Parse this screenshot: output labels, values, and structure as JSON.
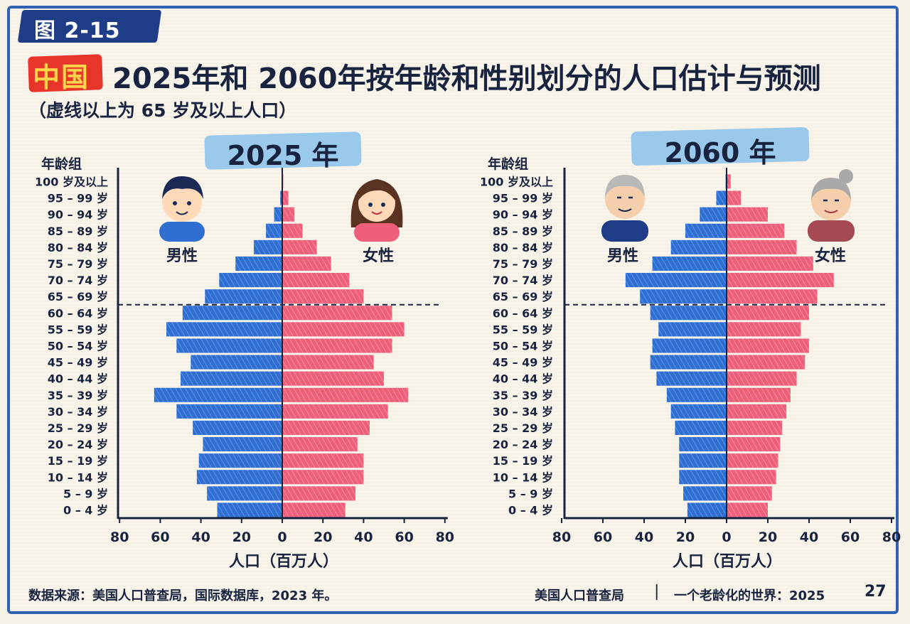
{
  "header": {
    "figure_tag": "图 2-15",
    "country_badge": "中国",
    "title": "2025年和 2060年按年龄和性别划分的人口估计与预测",
    "subtitle": "（虚线以上为 65 岁及以上人口）"
  },
  "legend": {
    "male": "男性",
    "female": "女性"
  },
  "colors": {
    "male": "#2f6fd1",
    "female": "#ee5f7a",
    "axis": "#18233f"
  },
  "footer": {
    "source": "数据来源：美国人口普查局，国际数据库，2023 年。",
    "publisher": "美国人口普查局",
    "separator": "|",
    "report": "一个老龄化的世界：2025",
    "page": "27"
  },
  "chart_data": [
    {
      "type": "bar",
      "title": "2025 年",
      "orientation": "horizontal-pyramid",
      "ylabel": "年龄组",
      "xlabel": "人口（百万人）",
      "xlim": [
        -80,
        80
      ],
      "xticks": [
        "80",
        "60",
        "40",
        "20",
        "0",
        "20",
        "40",
        "60",
        "80"
      ],
      "dashed_line_above": "60 – 64 岁",
      "categories": [
        "0 – 4 岁",
        "5 – 9 岁",
        "10 – 14 岁",
        "15 – 19 岁",
        "20 – 24 岁",
        "25 – 29 岁",
        "30 – 34 岁",
        "35 – 39 岁",
        "40 – 44 岁",
        "45 – 49 岁",
        "50 – 54 岁",
        "55 – 59 岁",
        "60 – 64 岁",
        "65 – 69 岁",
        "70 – 74 岁",
        "75 – 79 岁",
        "80 – 84 岁",
        "85 – 89 岁",
        "90 – 94 岁",
        "95 – 99 岁",
        "100 岁及以上"
      ],
      "series": [
        {
          "name": "男性",
          "values": [
            32,
            37,
            42,
            41,
            39,
            44,
            52,
            63,
            50,
            45,
            52,
            57,
            49,
            38,
            31,
            23,
            14,
            8,
            4,
            1,
            0.2
          ]
        },
        {
          "name": "女性",
          "values": [
            31,
            36,
            40,
            40,
            37,
            43,
            52,
            62,
            50,
            45,
            54,
            60,
            54,
            40,
            33,
            24,
            17,
            10,
            6,
            3,
            0.5
          ]
        }
      ]
    },
    {
      "type": "bar",
      "title": "2060 年",
      "orientation": "horizontal-pyramid",
      "ylabel": "年龄组",
      "xlabel": "人口（百万人）",
      "xlim": [
        -80,
        80
      ],
      "xticks": [
        "80",
        "60",
        "40",
        "20",
        "0",
        "20",
        "40",
        "60",
        "80"
      ],
      "dashed_line_above": "60 – 64 岁",
      "categories": [
        "0 – 4 岁",
        "5 – 9 岁",
        "10 – 14 岁",
        "15 – 19 岁",
        "20 – 24 岁",
        "25 – 29 岁",
        "30 – 34 岁",
        "35 – 39 岁",
        "40 – 44 岁",
        "45 – 49 岁",
        "50 – 54 岁",
        "55 – 59 岁",
        "60 – 64 岁",
        "65 – 69 岁",
        "70 – 74 岁",
        "75 – 79 岁",
        "80 – 84 岁",
        "85 – 89 岁",
        "90 – 94 岁",
        "95 – 99 岁",
        "100 岁及以上"
      ],
      "series": [
        {
          "name": "男性",
          "values": [
            19,
            21,
            23,
            23,
            23,
            25,
            27,
            29,
            34,
            37,
            36,
            33,
            37,
            42,
            49,
            36,
            27,
            20,
            13,
            5,
            0.5
          ]
        },
        {
          "name": "女性",
          "values": [
            20,
            22,
            24,
            25,
            26,
            27,
            29,
            31,
            34,
            38,
            40,
            36,
            40,
            44,
            52,
            42,
            34,
            28,
            20,
            7,
            2
          ]
        }
      ]
    }
  ]
}
